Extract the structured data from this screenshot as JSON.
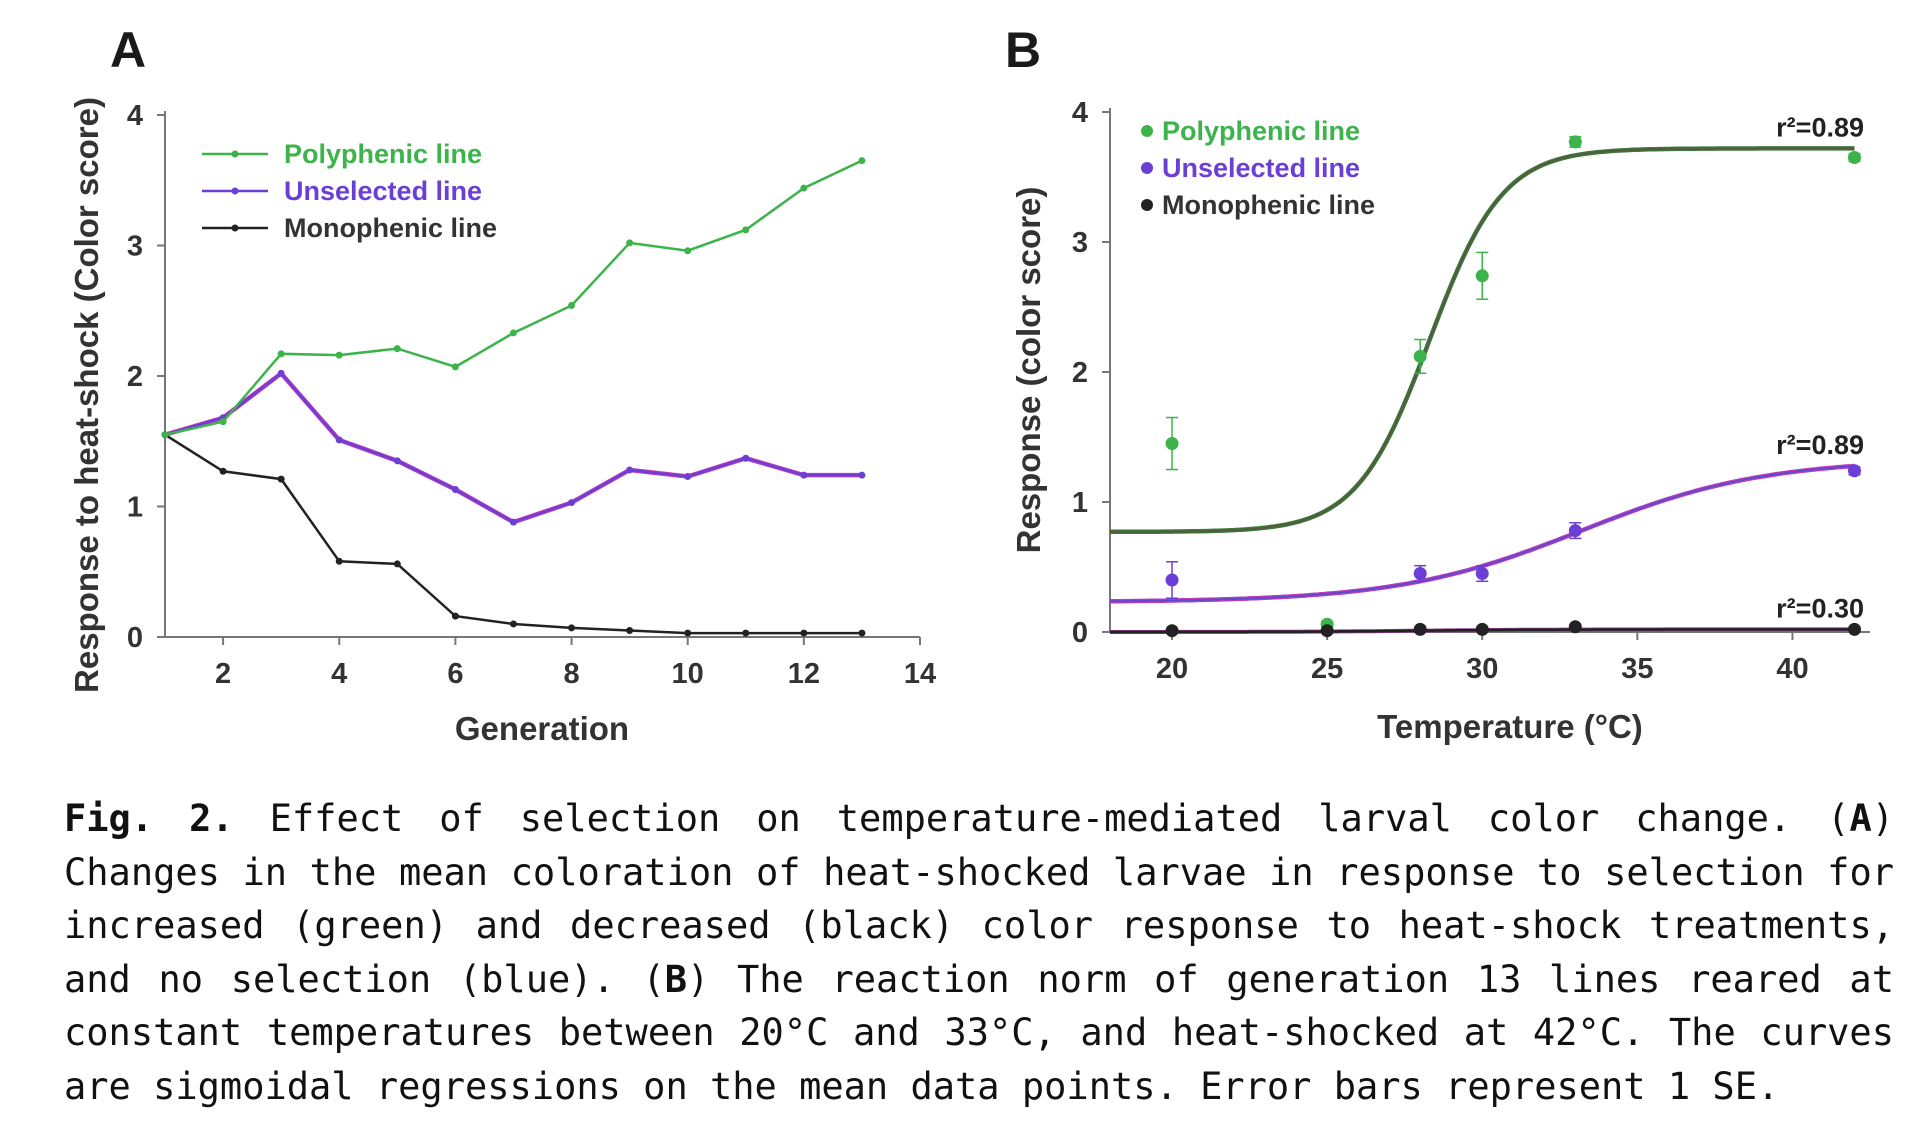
{
  "caption": {
    "label": "Fig. 2.",
    "p1": " Effect of selection on temperature-mediated larval color change. (",
    "a": "A",
    "p2": ") Changes in the mean coloration of heat-shocked larvae in response to selection for increased (green) and decreased (black) color response to heat-shock treatments, and no selection (blue). (",
    "b": "B",
    "p3": ") The reaction norm of generation 13 lines reared at constant temperatures between 20°C and 33°C, and heat-shocked at 42°C. The curves are sigmoidal regressions on the mean data points. Error bars represent 1 SE."
  },
  "colors": {
    "polyphenic": "#3cb44b",
    "unselected": "#6b3fd6",
    "unselected_fit": "#c23bb5",
    "monophenic": "#222222",
    "axis": "#777777"
  },
  "chart_data": [
    {
      "panel": "A",
      "type": "line",
      "xlabel": "Generation",
      "ylabel": "Response to heat-shock (Color score)",
      "xlim": [
        1,
        14
      ],
      "ylim": [
        0,
        4
      ],
      "xticks": [
        2,
        4,
        6,
        8,
        10,
        12,
        14
      ],
      "yticks": [
        0,
        1,
        2,
        3,
        4
      ],
      "x": [
        1,
        2,
        3,
        4,
        5,
        6,
        7,
        8,
        9,
        10,
        11,
        12,
        13
      ],
      "series": [
        {
          "key": "polyphenic",
          "name": "Polyphenic line",
          "values": [
            1.55,
            1.65,
            2.17,
            2.16,
            2.21,
            2.07,
            2.33,
            2.54,
            3.02,
            2.96,
            3.12,
            3.44,
            3.65
          ]
        },
        {
          "key": "unselected",
          "name": "Unselected line",
          "values": [
            1.55,
            1.68,
            2.02,
            1.51,
            1.35,
            1.13,
            0.88,
            1.03,
            1.28,
            1.23,
            1.37,
            1.24,
            1.24
          ]
        },
        {
          "key": "monophenic",
          "name": "Monophenic line",
          "values": [
            1.55,
            1.27,
            1.21,
            0.58,
            0.56,
            0.16,
            0.1,
            0.07,
            0.05,
            0.03,
            0.03,
            0.03,
            0.03
          ]
        }
      ]
    },
    {
      "panel": "B",
      "type": "scatter",
      "xlabel": "Temperature (°C)",
      "ylabel": "Response (color score)",
      "xlim": [
        18,
        42.5
      ],
      "ylim": [
        0,
        4
      ],
      "xticks": [
        20,
        25,
        30,
        35,
        40
      ],
      "yticks": [
        0,
        1,
        2,
        3,
        4
      ],
      "series": [
        {
          "key": "polyphenic",
          "name": "Polyphenic line",
          "x": [
            20,
            25,
            28,
            30,
            33,
            42
          ],
          "values": [
            1.45,
            0.06,
            2.12,
            2.74,
            3.77,
            3.65
          ],
          "se": [
            0.2,
            0.02,
            0.13,
            0.18,
            0.04,
            0.03
          ],
          "fit": {
            "base": 0.77,
            "amp": 2.95,
            "mid": 28.3,
            "k": 0.85
          },
          "r2": "r²=0.89"
        },
        {
          "key": "unselected",
          "name": "Unselected line",
          "x": [
            20,
            28,
            30,
            33,
            42
          ],
          "values": [
            0.4,
            0.45,
            0.45,
            0.78,
            1.24
          ],
          "se": [
            0.14,
            0.06,
            0.06,
            0.06,
            0.03
          ],
          "fit": {
            "base": 0.23,
            "amp": 1.1,
            "mid": 33.2,
            "k": 0.34
          },
          "r2": "r²=0.89"
        },
        {
          "key": "monophenic",
          "name": "Monophenic line",
          "x": [
            20,
            25,
            28,
            30,
            33,
            42
          ],
          "values": [
            0.01,
            0.01,
            0.02,
            0.02,
            0.04,
            0.02
          ],
          "se": [
            0,
            0,
            0,
            0,
            0.01,
            0
          ],
          "fit": {
            "base": 0.0,
            "amp": 0.02,
            "mid": 28,
            "k": 0.5
          },
          "r2": "r²=0.30"
        }
      ]
    }
  ]
}
